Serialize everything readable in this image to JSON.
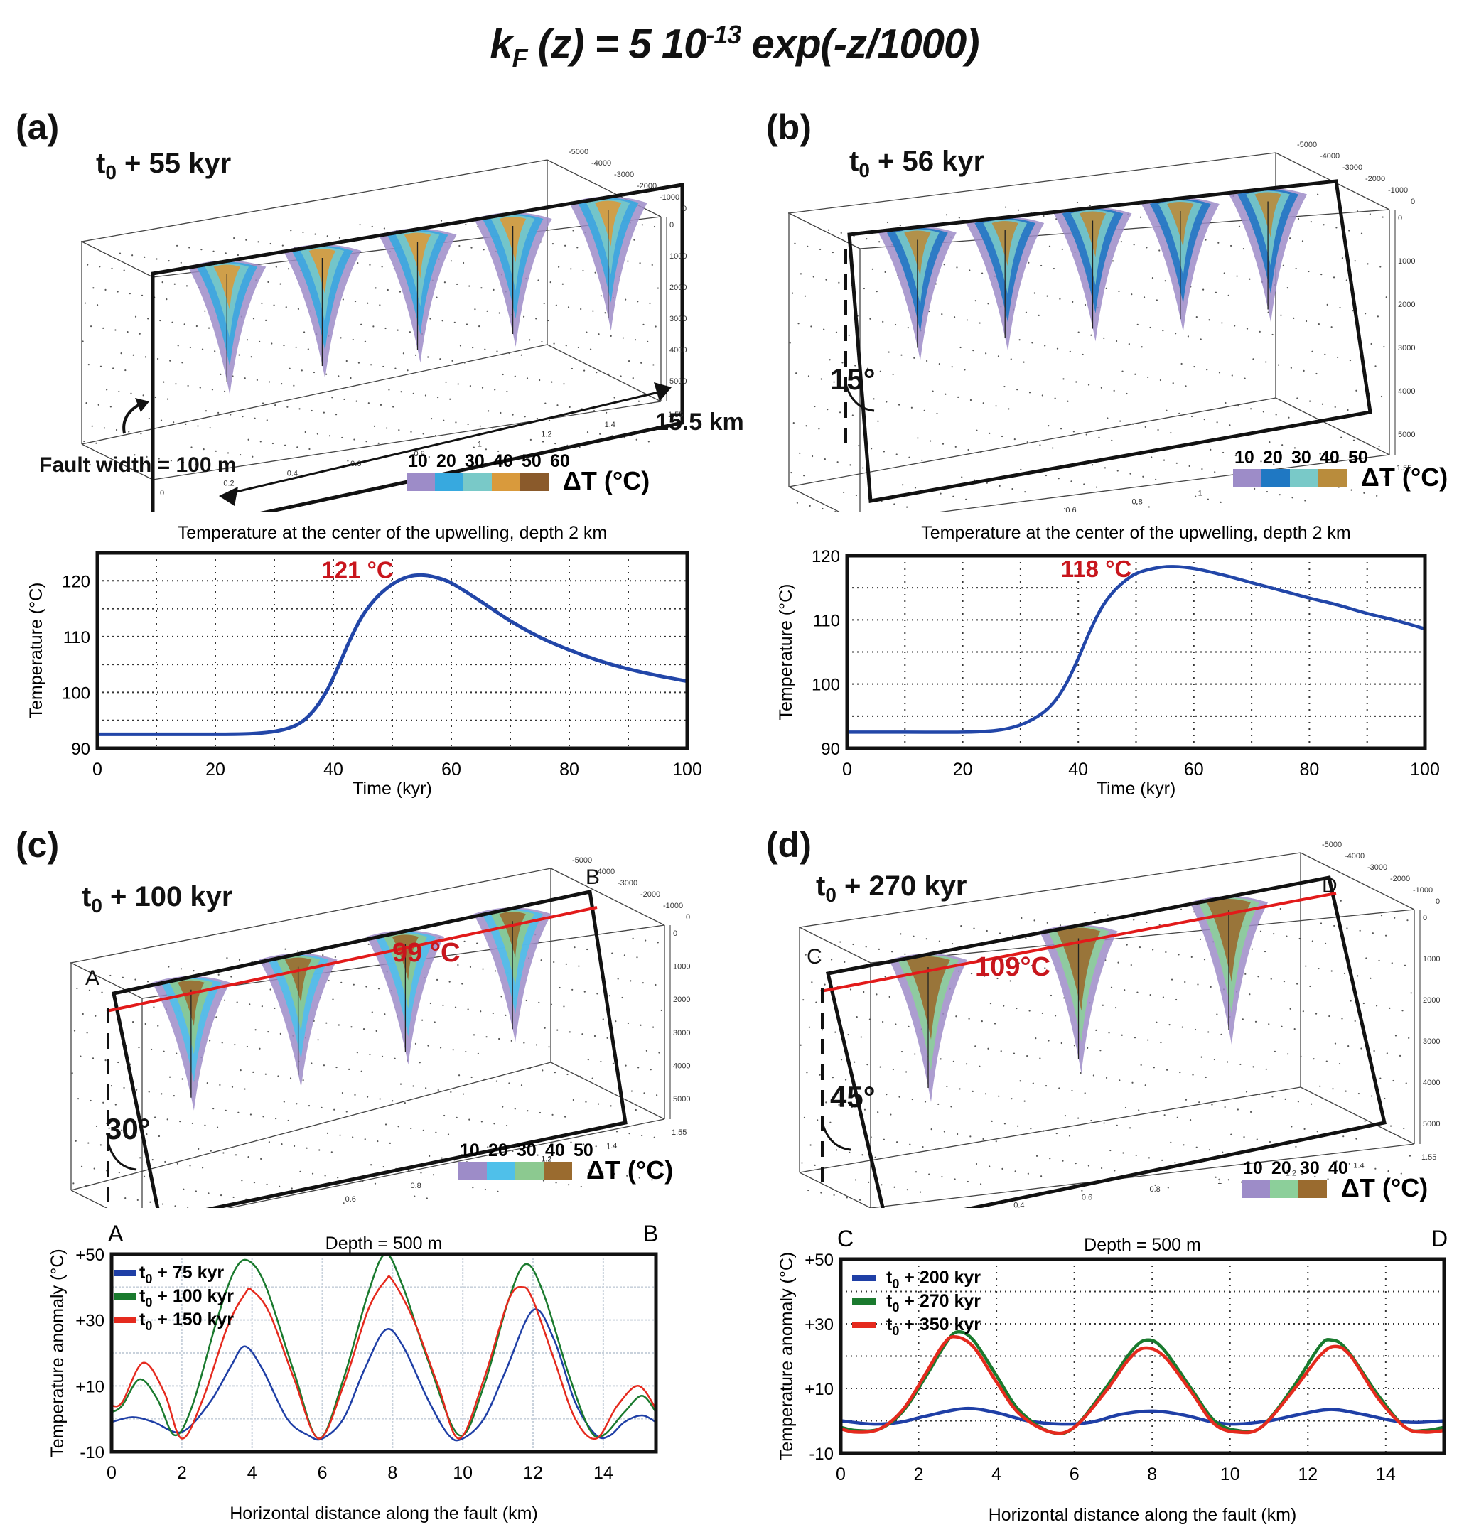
{
  "title": {
    "prefix": "k",
    "sub": "F",
    "mid": " (z) = 5 10",
    "sup": "-13",
    "suffix": " exp(-z/1000)"
  },
  "panels": {
    "a": {
      "label": "(a)",
      "time": {
        "t": "t",
        "sub": "0",
        "rest": " + 55 kyr"
      },
      "fault_width": "Fault width = 100 m",
      "length": "15.5 km",
      "dip": "",
      "colorbar": {
        "ticks": [
          "10",
          "20",
          "30",
          "40",
          "50",
          "60"
        ],
        "colors": [
          "#9d8cc8",
          "#37a9df",
          "#79c9c8",
          "#d99a3c",
          "#8a5a2b"
        ],
        "unit": "ΔT  (°C)"
      },
      "plumes": 5
    },
    "b": {
      "label": "(b)",
      "time": {
        "t": "t",
        "sub": "0",
        "rest": " + 56 kyr"
      },
      "dip": "15°",
      "colorbar": {
        "ticks": [
          "10",
          "20",
          "30",
          "40",
          "50"
        ],
        "colors": [
          "#9d8cc8",
          "#1f78c3",
          "#79c9c8",
          "#b98c3c"
        ],
        "unit": "ΔT  (°C)"
      },
      "plumes": 5
    },
    "c": {
      "label": "(c)",
      "time": {
        "t": "t",
        "sub": "0",
        "rest": " + 100 kyr"
      },
      "dip": "30°",
      "profile_start": "A",
      "profile_end": "B",
      "profile_temp": "99 °C",
      "colorbar": {
        "ticks": [
          "10",
          "20",
          "30",
          "40",
          "50"
        ],
        "colors": [
          "#9d8cc8",
          "#4fc0ea",
          "#8cc990",
          "#9a6b2f"
        ],
        "unit": "ΔT  (°C)"
      },
      "plumes": 4
    },
    "d": {
      "label": "(d)",
      "time": {
        "t": "t",
        "sub": "0",
        "rest": " + 270 kyr"
      },
      "dip": "45°",
      "profile_start": "C",
      "profile_end": "D",
      "profile_temp": "109°C",
      "colorbar": {
        "ticks": [
          "10",
          "20",
          "30",
          "40"
        ],
        "colors": [
          "#9d8cc8",
          "#8ccf9a",
          "#9a6b2f"
        ],
        "unit": "ΔT  (°C)"
      },
      "plumes": 3
    }
  },
  "axes3d": {
    "depth_ticks": [
      "0",
      "1000",
      "2000",
      "3000",
      "4000",
      "5000"
    ],
    "along_ticks": [
      "0",
      "0.2",
      "0.4",
      "0.6",
      "0.8",
      "1",
      "1.2",
      "1.4",
      "1.55"
    ],
    "across_ticks": [
      "-5000",
      "-4000",
      "-3000",
      "-2000",
      "-1000",
      "0"
    ]
  },
  "chart_data": [
    {
      "id": "a",
      "type": "line",
      "title": "Temperature at the center of the upwelling, depth 2 km",
      "xlabel": "Time (kyr)",
      "ylabel": "Temperature (°C)",
      "xlim": [
        0,
        100
      ],
      "ylim": [
        90,
        125
      ],
      "xticks": [
        0,
        20,
        40,
        60,
        80,
        100
      ],
      "yticks": [
        90,
        100,
        110,
        120
      ],
      "grid": true,
      "annotation": "121 °C",
      "series": [
        {
          "name": "temperature",
          "color": "#2246a8",
          "x": [
            0,
            10,
            20,
            26,
            30,
            33,
            35,
            37,
            39,
            41,
            43,
            45,
            47,
            49,
            51,
            53,
            55,
            57,
            60,
            65,
            70,
            75,
            80,
            85,
            90,
            95,
            100
          ],
          "y": [
            92.5,
            92.5,
            92.5,
            92.6,
            93.0,
            93.8,
            95.0,
            97.2,
            100.5,
            105.0,
            109.8,
            113.8,
            116.6,
            118.6,
            120.0,
            120.8,
            121.0,
            120.7,
            119.6,
            116.3,
            112.8,
            109.9,
            107.6,
            105.7,
            104.2,
            103.0,
            102.0
          ]
        }
      ]
    },
    {
      "id": "b",
      "type": "line",
      "title": "Temperature at the center of the upwelling, depth 2 km",
      "xlabel": "Time (kyr)",
      "ylabel": "Temperature (°C)",
      "xlim": [
        0,
        100
      ],
      "ylim": [
        90,
        120
      ],
      "xticks": [
        0,
        20,
        40,
        60,
        80,
        100
      ],
      "yticks": [
        90,
        100,
        110,
        120
      ],
      "grid": true,
      "annotation": "118 °C",
      "series": [
        {
          "name": "temperature",
          "color": "#2246a8",
          "x": [
            0,
            10,
            20,
            25,
            28,
            31,
            34,
            36,
            38,
            40,
            42,
            44,
            46,
            48,
            50,
            53,
            56,
            60,
            65,
            70,
            75,
            80,
            85,
            90,
            95,
            100
          ],
          "y": [
            92.5,
            92.5,
            92.5,
            92.7,
            93.1,
            94.0,
            95.6,
            97.4,
            100.2,
            104.0,
            108.2,
            111.8,
            114.3,
            116.0,
            117.2,
            118.0,
            118.3,
            118.0,
            117.0,
            115.8,
            114.6,
            113.4,
            112.3,
            111.0,
            109.9,
            108.6
          ]
        }
      ]
    },
    {
      "id": "c",
      "type": "line",
      "title": "Depth = 500 m",
      "xlabel": "Horizontal distance along the fault (km)",
      "ylabel": "Temperature anomaly  (°C)",
      "xlim": [
        0,
        15.5
      ],
      "ylim": [
        -10,
        50
      ],
      "xticks": [
        0,
        2,
        4,
        6,
        8,
        10,
        12,
        14
      ],
      "yticks": [
        "-10",
        "+10",
        "+30",
        "+50"
      ],
      "ytick_values": [
        -10,
        10,
        30,
        50
      ],
      "grid": true,
      "legend": "top-left",
      "end_labels": [
        "A",
        "B"
      ],
      "series": [
        {
          "name": "t0 + 75 kyr",
          "color": "#1f3fa6",
          "x": [
            0,
            0.6,
            1.2,
            2.0,
            2.8,
            3.4,
            3.8,
            4.3,
            5.0,
            5.6,
            6.0,
            6.6,
            7.2,
            7.8,
            8.3,
            9.0,
            9.6,
            10.0,
            10.6,
            11.2,
            12.0,
            12.6,
            13.2,
            13.8,
            14.2,
            14.6,
            15.1,
            15.5
          ],
          "y": [
            -1,
            0.5,
            -1,
            -4,
            5,
            16,
            22,
            15,
            0,
            -5,
            -6,
            0,
            15,
            27,
            22,
            6,
            -5,
            -6,
            0,
            14,
            33,
            24,
            5,
            -5,
            -5,
            -1,
            1,
            -1
          ]
        },
        {
          "name": "t0 + 100 kyr",
          "color": "#1a7a2e",
          "x": [
            0,
            0.3,
            0.8,
            1.3,
            1.8,
            2.3,
            3.0,
            3.5,
            3.9,
            4.4,
            5.2,
            5.9,
            6.6,
            7.3,
            7.8,
            8.3,
            9.0,
            9.9,
            10.6,
            11.3,
            11.8,
            12.3,
            13.0,
            13.6,
            14.0,
            14.6,
            15.1,
            15.5
          ],
          "y": [
            2,
            4,
            12,
            6,
            -5,
            4,
            30,
            45,
            48,
            40,
            14,
            -6,
            12,
            38,
            50,
            40,
            18,
            -5,
            10,
            36,
            47,
            38,
            14,
            -3,
            -5,
            2,
            7,
            2
          ]
        },
        {
          "name": "t0 + 150 kyr",
          "color": "#e52a1e",
          "x": [
            0,
            0.3,
            0.9,
            1.5,
            2.0,
            2.6,
            3.3,
            3.8,
            4.0,
            4.5,
            5.2,
            5.9,
            6.6,
            7.3,
            7.8,
            8.0,
            8.6,
            9.3,
            9.9,
            10.6,
            11.3,
            11.7,
            12.0,
            12.6,
            13.2,
            13.8,
            14.4,
            15.0,
            15.5
          ],
          "y": [
            4,
            5,
            17,
            8,
            -6,
            6,
            28,
            38,
            39,
            32,
            12,
            -6,
            10,
            33,
            42,
            42,
            30,
            10,
            -6,
            12,
            36,
            40,
            36,
            18,
            0,
            -6,
            4,
            10,
            3
          ]
        }
      ]
    },
    {
      "id": "d",
      "type": "line",
      "title": "Depth = 500 m",
      "xlabel": "Horizontal distance along the fault (km)",
      "ylabel": "Temperature anomaly  (°C)",
      "xlim": [
        0,
        15.5
      ],
      "ylim": [
        -10,
        50
      ],
      "xticks": [
        0,
        2,
        4,
        6,
        8,
        10,
        12,
        14
      ],
      "yticks": [
        "-10",
        "+10",
        "+30",
        "+50"
      ],
      "ytick_values": [
        -10,
        10,
        30,
        50
      ],
      "grid": true,
      "legend": "top-left",
      "end_labels": [
        "C",
        "D"
      ],
      "series": [
        {
          "name": "t0 + 200 kyr",
          "color": "#1f3fa6",
          "x": [
            0,
            0.8,
            1.5,
            2.2,
            3.2,
            4.0,
            4.8,
            5.6,
            6.4,
            7.2,
            8.0,
            8.8,
            9.6,
            10.2,
            11.0,
            11.8,
            12.6,
            13.4,
            14.2,
            14.8,
            15.5
          ],
          "y": [
            0,
            -1,
            -0.5,
            1.5,
            3.8,
            2.5,
            0,
            -1,
            -0.5,
            2,
            3,
            1.8,
            -0.5,
            -1,
            0,
            2,
            3.5,
            2,
            0,
            -0.5,
            0
          ]
        },
        {
          "name": "t0 + 270 kyr",
          "color": "#1a7a2e",
          "x": [
            0,
            0.4,
            1.0,
            1.6,
            2.2,
            2.7,
            3.0,
            3.4,
            4.0,
            4.6,
            5.4,
            6.0,
            6.8,
            7.5,
            7.9,
            8.3,
            9.0,
            9.6,
            10.2,
            10.8,
            11.6,
            12.3,
            12.6,
            13.0,
            13.8,
            14.5,
            15.0,
            15.5
          ],
          "y": [
            -2,
            -3,
            -2.5,
            3,
            14,
            24,
            27.5,
            25,
            14,
            3,
            -3.5,
            -2,
            10,
            22,
            25,
            22,
            10,
            0,
            -3,
            -2,
            10,
            23,
            25,
            22,
            8,
            -2,
            -3,
            -2
          ]
        },
        {
          "name": "t0 + 350 kyr",
          "color": "#e52a1e",
          "x": [
            0,
            0.4,
            1.0,
            1.6,
            2.2,
            2.6,
            2.9,
            3.4,
            4.0,
            4.6,
            5.4,
            6.0,
            6.8,
            7.4,
            7.8,
            8.3,
            9.0,
            9.6,
            10.2,
            10.8,
            11.6,
            12.3,
            12.7,
            13.1,
            13.8,
            14.5,
            15.0,
            15.5
          ],
          "y": [
            -2.5,
            -3.5,
            -2.5,
            3.5,
            15,
            23,
            26,
            23,
            12,
            2,
            -3.5,
            -2,
            9,
            19,
            22.5,
            20,
            9,
            -1,
            -3.5,
            -2,
            9,
            20,
            23,
            20,
            7,
            -2,
            -3.5,
            -3
          ]
        }
      ]
    }
  ]
}
